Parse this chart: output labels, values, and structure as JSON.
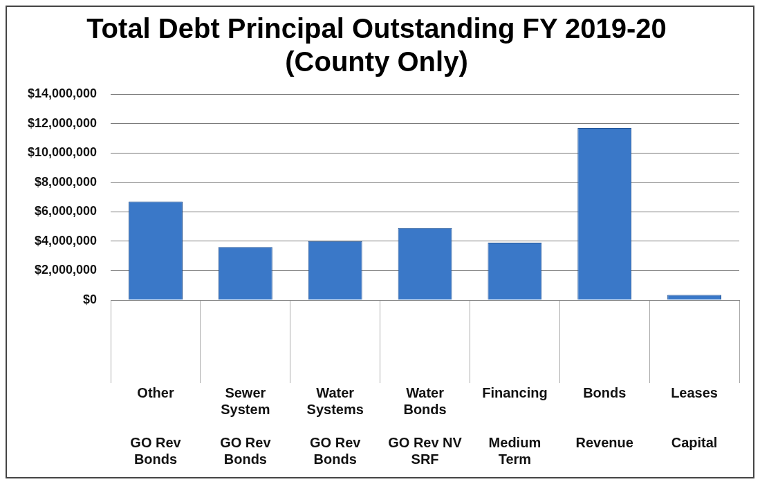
{
  "chart_data": {
    "type": "bar",
    "title": "Total Debt Principal Outstanding FY 2019-20\n(County Only)",
    "categories": [
      "Other\n\n\nGO Rev\nBonds",
      "Sewer\nSystem\n\nGO Rev\nBonds",
      "Water\nSystems\n\nGO Rev\nBonds",
      "Water\nBonds\n\nGO Rev NV\nSRF",
      "Financing\n\n\nMedium\nTerm",
      "Bonds\n\n\nRevenue",
      "Leases\n\n\nCapital"
    ],
    "values": [
      6700000,
      3600000,
      4000000,
      4900000,
      3900000,
      11700000,
      350000
    ],
    "color": "#3a78c8",
    "ylim": [
      0,
      14000000
    ],
    "yticks": [
      {
        "value": 0,
        "label": "$0"
      },
      {
        "value": 2000000,
        "label": "$2,000,000"
      },
      {
        "value": 4000000,
        "label": "$4,000,000"
      },
      {
        "value": 6000000,
        "label": "$6,000,000"
      },
      {
        "value": 8000000,
        "label": "$8,000,000"
      },
      {
        "value": 10000000,
        "label": "$10,000,000"
      },
      {
        "value": 12000000,
        "label": "$12,000,000"
      },
      {
        "value": 14000000,
        "label": "$14,000,000"
      }
    ],
    "grid": "y",
    "legend": false
  }
}
